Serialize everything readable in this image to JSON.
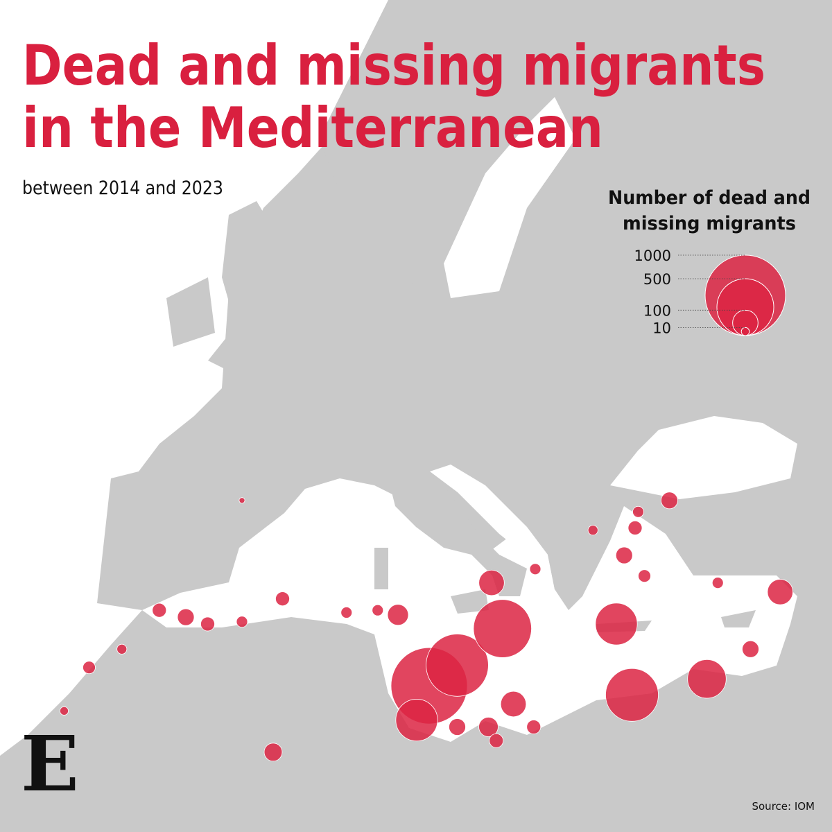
{
  "header": {
    "title_lines": [
      "Dead and missing migrants",
      "in the Mediterranean"
    ],
    "subtitle": "between 2014 and 2023",
    "logo": "E"
  },
  "legend": {
    "title_lines": [
      "Number of dead and",
      "missing migrants"
    ],
    "sizes": [
      1000,
      500,
      100,
      10
    ]
  },
  "bubble_color": "#dc2443",
  "points": [
    {
      "lon": 12.8,
      "lat": 32.5,
      "value": 900
    },
    {
      "lon": 14.6,
      "lat": 33.4,
      "value": 600
    },
    {
      "lon": 17.5,
      "lat": 35.0,
      "value": 520
    },
    {
      "lon": 25.8,
      "lat": 32.1,
      "value": 430
    },
    {
      "lon": 24.8,
      "lat": 35.2,
      "value": 270
    },
    {
      "lon": 12.0,
      "lat": 31.0,
      "value": 270
    },
    {
      "lon": 30.6,
      "lat": 32.8,
      "value": 230
    },
    {
      "lon": 18.2,
      "lat": 31.7,
      "value": 100
    },
    {
      "lon": 16.8,
      "lat": 37.0,
      "value": 100
    },
    {
      "lon": 35.3,
      "lat": 36.6,
      "value": 100
    },
    {
      "lon": 10.8,
      "lat": 35.6,
      "value": 67
    },
    {
      "lon": 16.6,
      "lat": 30.7,
      "value": 58
    },
    {
      "lon": 2.8,
      "lat": 29.6,
      "value": 50
    },
    {
      "lon": 28.2,
      "lat": 40.6,
      "value": 43
    },
    {
      "lon": -2.8,
      "lat": 35.5,
      "value": 43
    },
    {
      "lon": 33.4,
      "lat": 34.1,
      "value": 43
    },
    {
      "lon": 25.3,
      "lat": 38.2,
      "value": 43
    },
    {
      "lon": 14.6,
      "lat": 30.7,
      "value": 43
    },
    {
      "lon": 19.5,
      "lat": 30.7,
      "value": 30
    },
    {
      "lon": 17.1,
      "lat": 30.1,
      "value": 30
    },
    {
      "lon": -1.4,
      "lat": 35.2,
      "value": 30
    },
    {
      "lon": -4.5,
      "lat": 35.8,
      "value": 30
    },
    {
      "lon": 3.4,
      "lat": 36.3,
      "value": 30
    },
    {
      "lon": 26.0,
      "lat": 39.4,
      "value": 30
    },
    {
      "lon": -9.0,
      "lat": 33.3,
      "value": 24
    },
    {
      "lon": 26.6,
      "lat": 37.3,
      "value": 24
    },
    {
      "lon": 0.8,
      "lat": 35.3,
      "value": 19
    },
    {
      "lon": 7.5,
      "lat": 35.7,
      "value": 19
    },
    {
      "lon": 9.5,
      "lat": 35.8,
      "value": 19
    },
    {
      "lon": 31.3,
      "lat": 37.0,
      "value": 19
    },
    {
      "lon": 19.6,
      "lat": 37.6,
      "value": 19
    },
    {
      "lon": 26.2,
      "lat": 40.1,
      "value": 19
    },
    {
      "lon": 23.3,
      "lat": 39.3,
      "value": 15
    },
    {
      "lon": -6.9,
      "lat": 34.1,
      "value": 15
    },
    {
      "lon": -10.6,
      "lat": 31.4,
      "value": 11
    },
    {
      "lon": 0.8,
      "lat": 40.6,
      "value": 5
    }
  ],
  "source": "Source: IOM"
}
